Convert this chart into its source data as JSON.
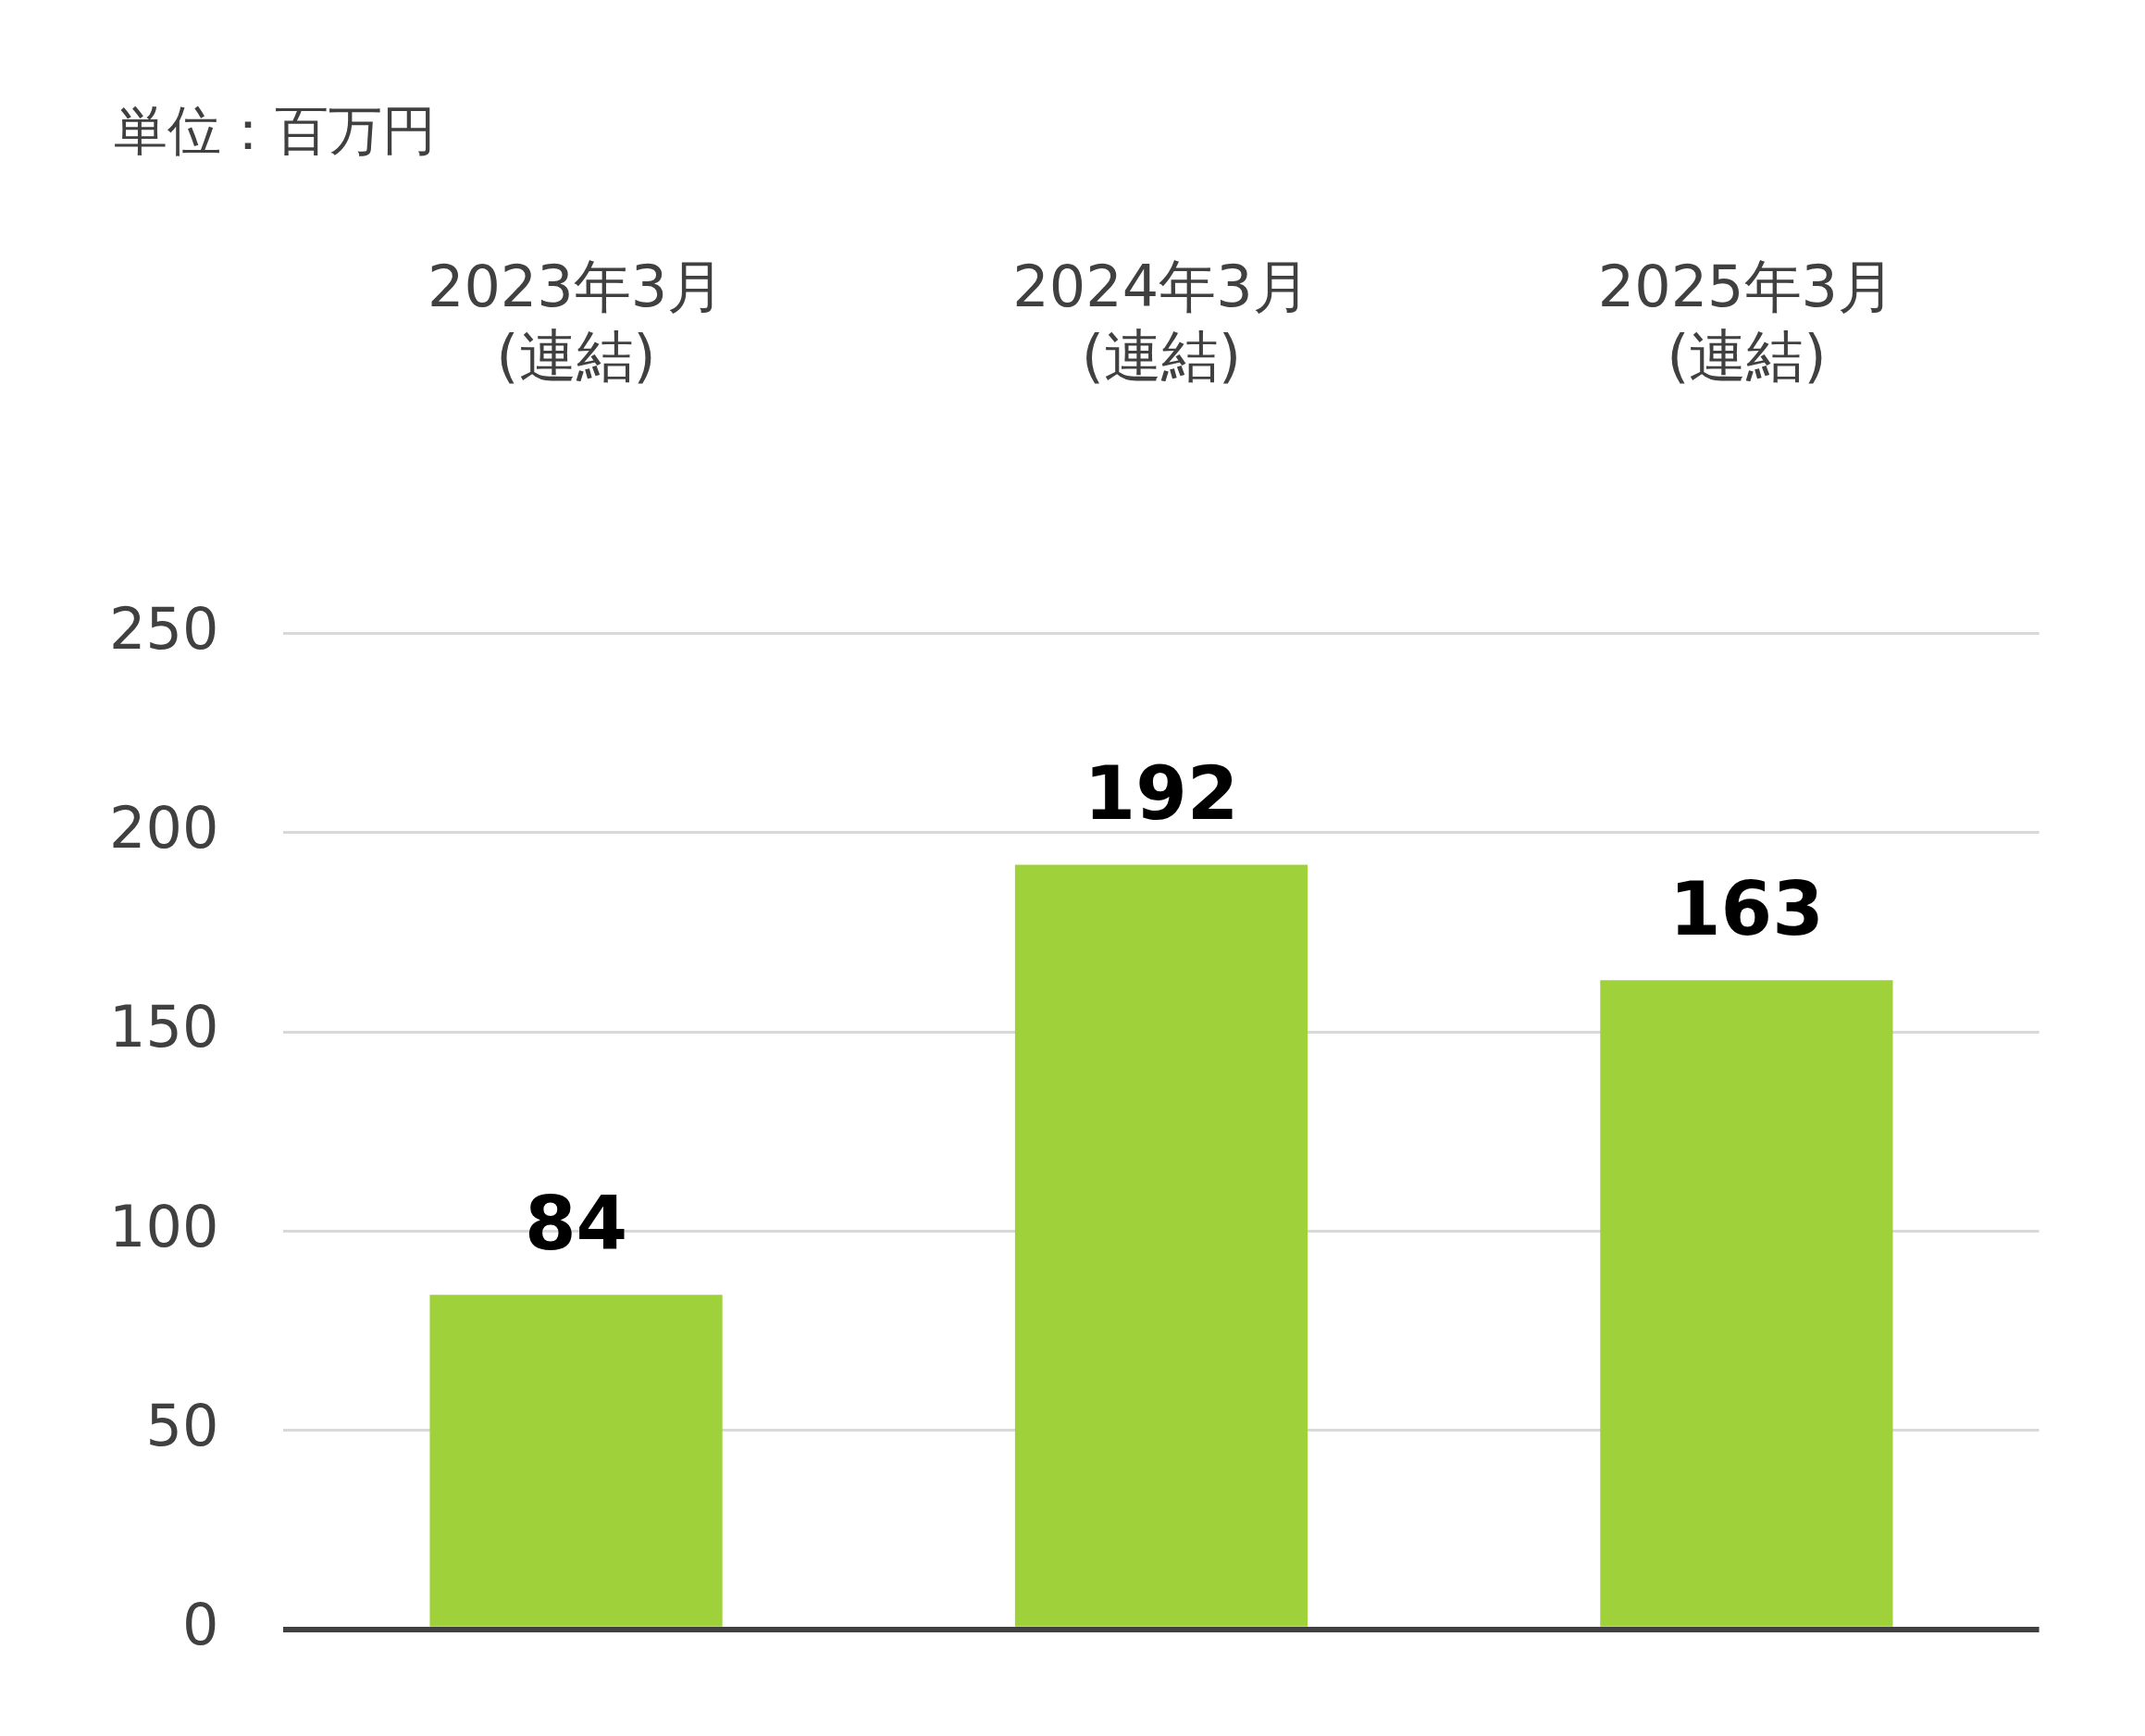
{
  "chart_data": {
    "type": "bar",
    "categories": [
      "2023年3月\n(連結)",
      "2024年3月\n(連結)",
      "2025年3月\n(連結)"
    ],
    "values": [
      84,
      192,
      163
    ],
    "color": "#9ed13a",
    "ylim": [
      0,
      250
    ],
    "yticks": [
      0,
      50,
      100,
      150,
      200,
      250
    ],
    "grid": "y",
    "data_labels": true,
    "annotations": [
      "単位：百万円"
    ]
  }
}
